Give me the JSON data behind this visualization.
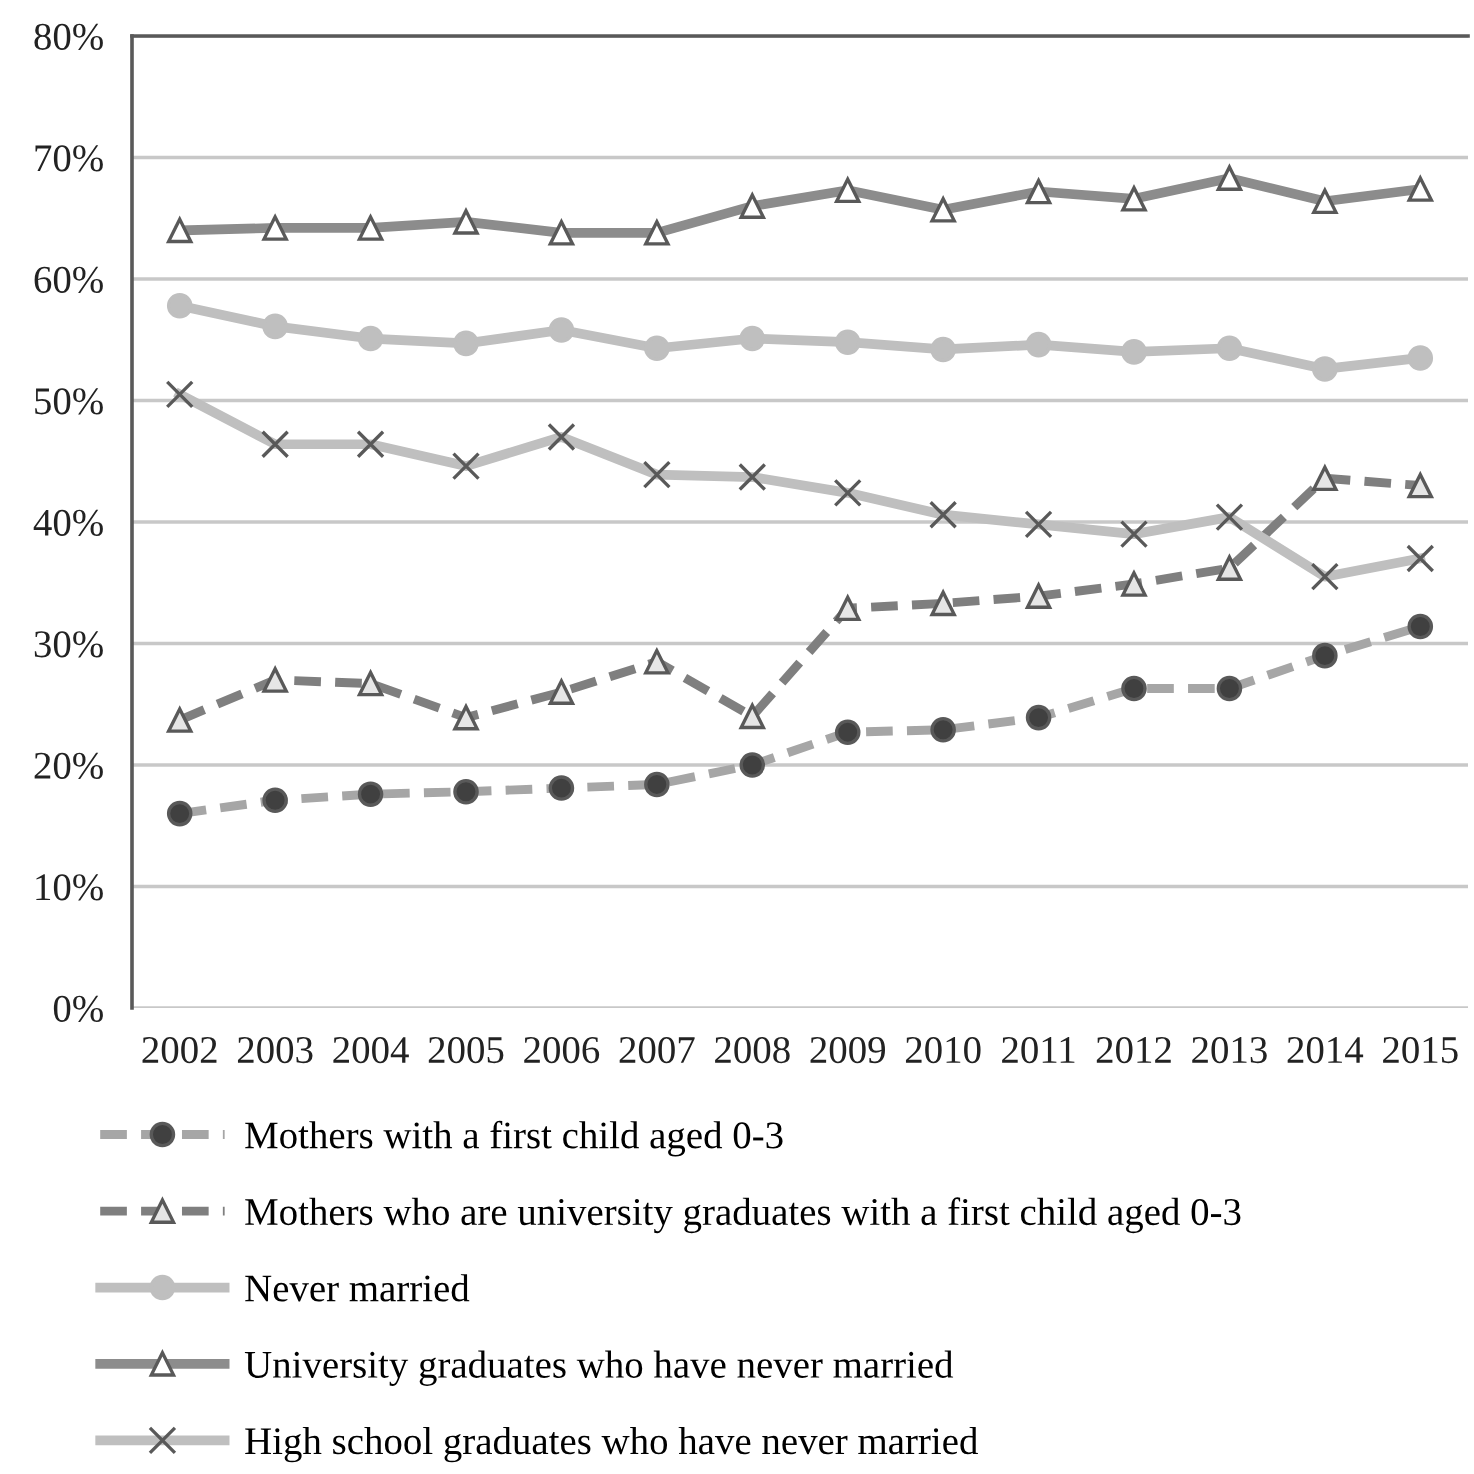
{
  "chart_data": {
    "type": "line",
    "categories": [
      "2002",
      "2003",
      "2004",
      "2005",
      "2006",
      "2007",
      "2008",
      "2009",
      "2010",
      "2011",
      "2012",
      "2013",
      "2014",
      "2015"
    ],
    "series": [
      {
        "name": "Mothers with a first child aged 0-3",
        "color": "#a6a6a6",
        "marker": "circle",
        "line_style": "dashed",
        "values": [
          16.0,
          17.1,
          17.6,
          17.8,
          18.1,
          18.4,
          20.0,
          22.7,
          22.9,
          23.9,
          26.3,
          26.3,
          29.0,
          31.4
        ]
      },
      {
        "name": "Mothers who are university graduates with a first child aged 0-3",
        "color": "#7f7f7f",
        "marker": "triangle",
        "line_style": "dashed",
        "values": [
          23.7,
          27.0,
          26.7,
          23.9,
          26.0,
          28.5,
          24.0,
          32.9,
          33.3,
          33.9,
          34.9,
          36.2,
          43.6,
          43.0
        ]
      },
      {
        "name": "Never married",
        "color": "#bfbfbf",
        "marker": "circle",
        "line_style": "solid",
        "values": [
          57.8,
          56.1,
          55.1,
          54.7,
          55.8,
          54.3,
          55.1,
          54.8,
          54.2,
          54.6,
          54.0,
          54.3,
          52.6,
          53.5
        ]
      },
      {
        "name": "University graduates who have never married",
        "color": "#8c8c8c",
        "marker": "triangle",
        "line_style": "solid",
        "values": [
          64.0,
          64.2,
          64.2,
          64.7,
          63.8,
          63.8,
          66.0,
          67.3,
          65.7,
          67.2,
          66.6,
          68.3,
          66.4,
          67.4
        ]
      },
      {
        "name": "High school graduates who have never married",
        "color": "#bfbfbf",
        "marker": "cross",
        "line_style": "solid",
        "values": [
          50.5,
          46.4,
          46.4,
          44.6,
          47.0,
          43.9,
          43.7,
          42.4,
          40.6,
          39.8,
          39.0,
          40.4,
          35.5,
          37.0
        ]
      }
    ],
    "ylim": [
      0,
      80
    ],
    "yticks": [
      {
        "value": 0,
        "label": "0%"
      },
      {
        "value": 10,
        "label": "10%"
      },
      {
        "value": 20,
        "label": "20%"
      },
      {
        "value": 30,
        "label": "30%"
      },
      {
        "value": 40,
        "label": "40%"
      },
      {
        "value": 50,
        "label": "50%"
      },
      {
        "value": 60,
        "label": "60%"
      },
      {
        "value": 70,
        "label": "70%"
      },
      {
        "value": 80,
        "label": "80%"
      }
    ],
    "grid": "y",
    "legend": "bottom"
  }
}
